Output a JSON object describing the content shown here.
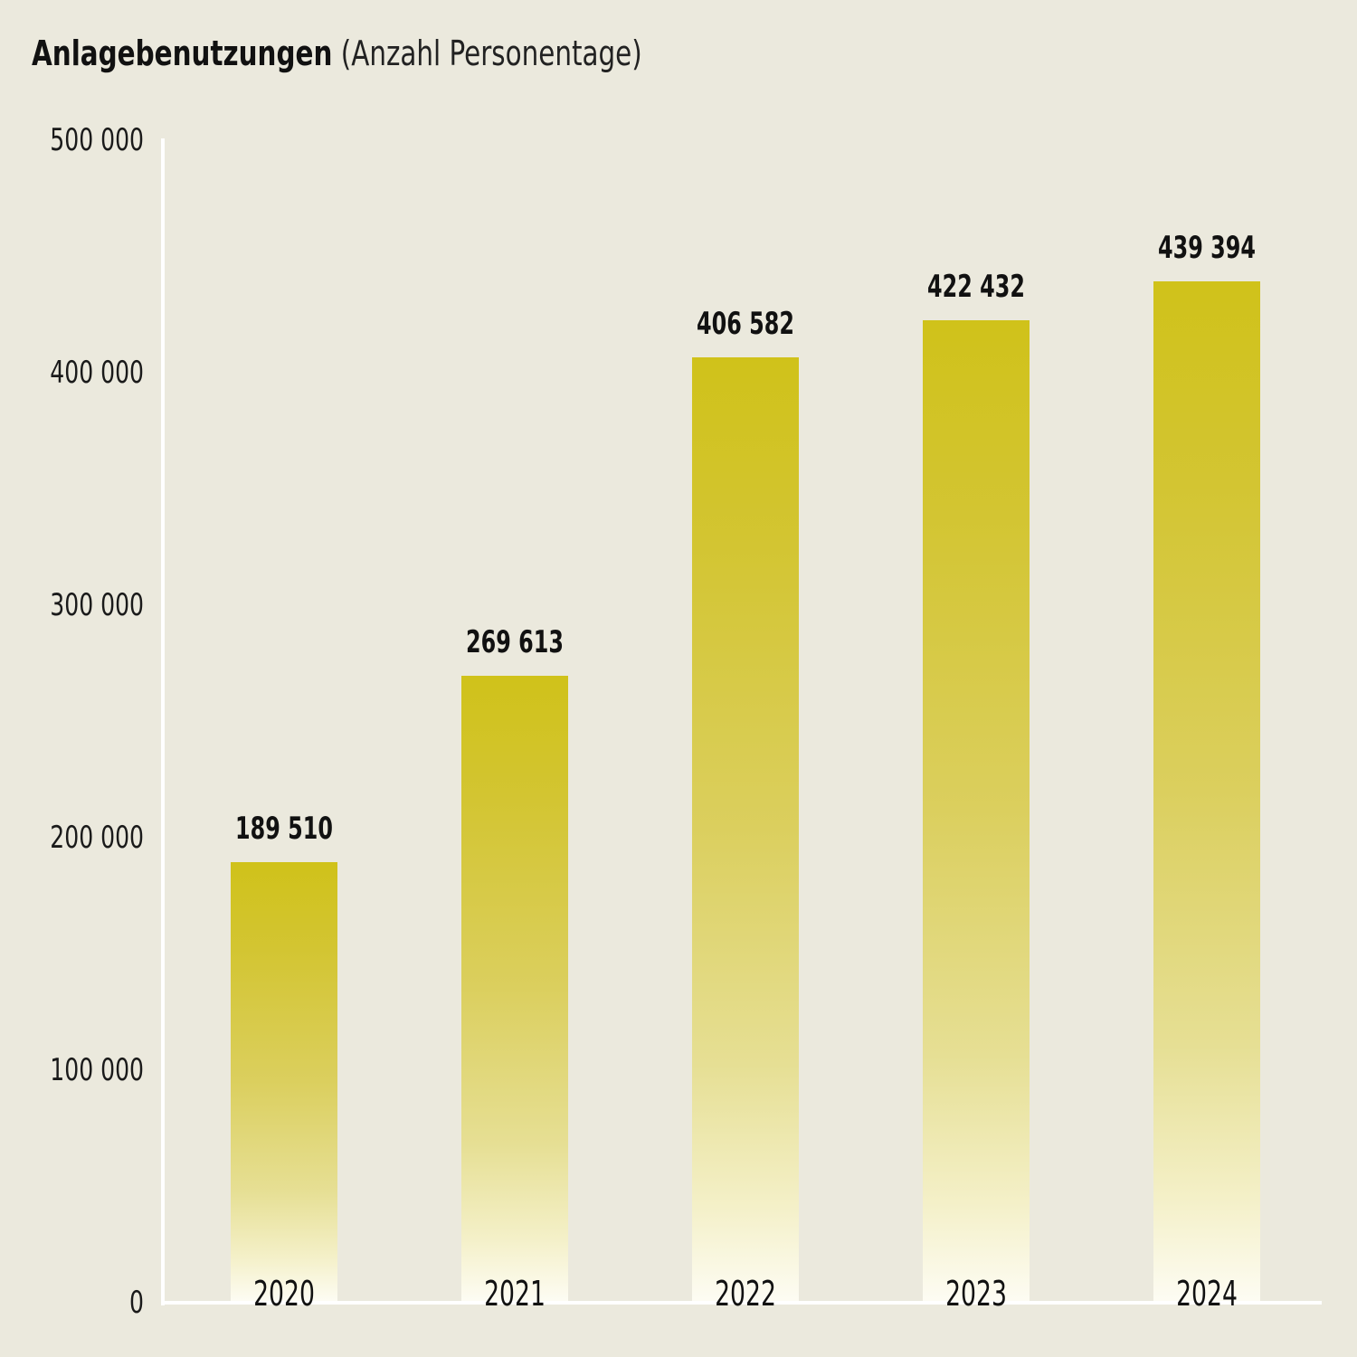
{
  "title": {
    "main": "Anlagebenutzungen",
    "sub": "(Anzahl Personentage)"
  },
  "colors": {
    "background": "#ebe9dd",
    "bar_top": "#d0c21a",
    "bar_bottom": "#fdfcf3",
    "axis": "#ffffff",
    "text": "#111111"
  },
  "axis": {
    "yticks": [
      "500 000",
      "400 000",
      "300 000",
      "200 000",
      "100 000",
      "0"
    ]
  },
  "bars": [
    {
      "year": "2020",
      "label": "189 510"
    },
    {
      "year": "2021",
      "label": "269 613"
    },
    {
      "year": "2022",
      "label": "406 582"
    },
    {
      "year": "2023",
      "label": "422 432"
    },
    {
      "year": "2024",
      "label": "439 394"
    }
  ],
  "chart_data": {
    "type": "bar",
    "title": "Anlagebenutzungen (Anzahl Personentage)",
    "categories": [
      "2020",
      "2021",
      "2022",
      "2023",
      "2024"
    ],
    "values": [
      189510,
      269613,
      406582,
      422432,
      439394
    ],
    "data_labels": [
      "189 510",
      "269 613",
      "406 582",
      "422 432",
      "439 394"
    ],
    "xlabel": "",
    "ylabel": "",
    "ylim": [
      0,
      500000
    ],
    "yticks": [
      0,
      100000,
      200000,
      300000,
      400000,
      500000
    ],
    "grid": false,
    "legend": null,
    "bar_style": "vertical gradient from olive-yellow (top) to near-white (bottom)"
  }
}
